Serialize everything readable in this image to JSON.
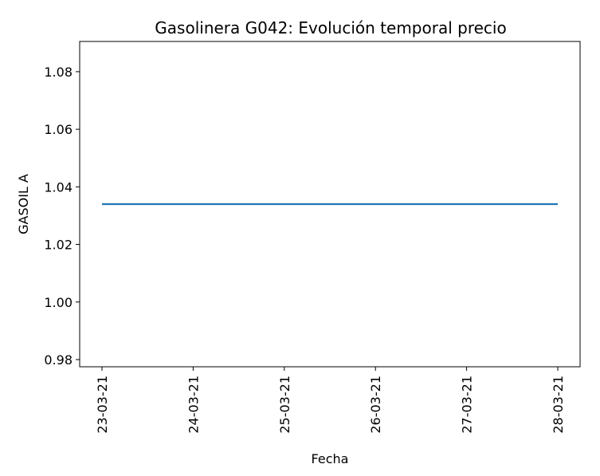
{
  "chart_data": {
    "type": "line",
    "title": "Gasolinera G042: Evolución temporal precio",
    "xlabel": "Fecha",
    "ylabel": "GASOIL A",
    "x": [
      "23-03-21",
      "24-03-21",
      "25-03-21",
      "26-03-21",
      "27-03-21",
      "28-03-21"
    ],
    "series": [
      {
        "values": [
          1.034,
          1.034,
          1.034,
          1.034,
          1.034,
          1.034
        ],
        "color": "#1f77b4"
      }
    ],
    "ylim": [
      0.9775,
      1.0905
    ],
    "yticks": [
      "0.98",
      "1.00",
      "1.02",
      "1.04",
      "1.06",
      "1.08"
    ],
    "grid": false,
    "legend": "none"
  }
}
